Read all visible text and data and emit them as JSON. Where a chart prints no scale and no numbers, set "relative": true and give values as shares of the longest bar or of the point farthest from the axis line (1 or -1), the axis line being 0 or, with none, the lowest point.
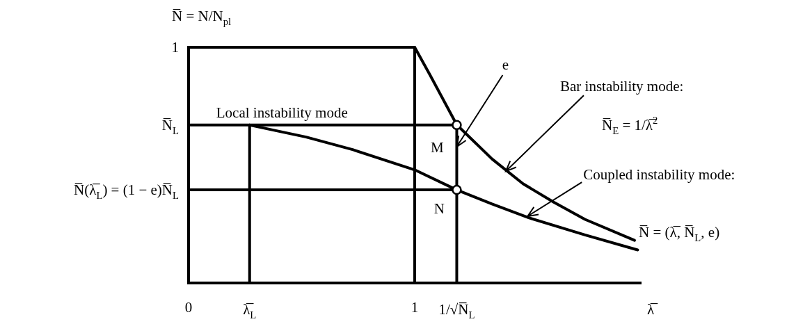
{
  "chart_data": {
    "type": "line",
    "xlabel": "λ̅",
    "ylabel": "N̅ = N/N$_{pl}$",
    "xlim": [
      0,
      2
    ],
    "xticks": [
      0,
      {
        "value": 0.27,
        "label": "λ̅$_{L}$"
      },
      1,
      {
        "value": 1.186,
        "label": "1/√N̅$_{L}$"
      }
    ],
    "relative": true,
    "series": [
      {
        "color": "#000000",
        "x": [
          0,
          1,
          1
        ],
        "values": [
          1,
          1,
          0
        ]
      },
      {
        "color": "#000000",
        "x": [
          1,
          1.068,
          1.186,
          1.342,
          1.479,
          1.616,
          1.753,
          1.972
        ],
        "values": [
          1,
          0.882,
          0.671,
          0.526,
          0.421,
          0.342,
          0.27,
          0.181
        ]
      },
      {
        "color": "#000000",
        "x": [
          0.27,
          0.52,
          0.725,
          1,
          1.186,
          1.342,
          1.506,
          1.753,
          1.986
        ],
        "values": [
          0.67,
          0.619,
          0.566,
          0.48,
          0.395,
          0.335,
          0.276,
          0.204,
          0.14
        ]
      },
      {
        "color": "#000000",
        "x": [
          0,
          1.186,
          1.186
        ],
        "values": [
          0.67,
          0.67,
          0
        ]
      },
      {
        "color": "#000000",
        "x": [
          0.27,
          0.27
        ],
        "values": [
          0.67,
          0
        ]
      },
      {
        "color": "#000000",
        "x": [
          0,
          1.186
        ],
        "values": [
          0.395,
          0.395
        ]
      },
      {
        "type": "scatter",
        "marker": "circle",
        "color": "#000000",
        "x": [
          1.186,
          1.186
        ],
        "values": [
          0.67,
          0.395
        ]
      }
    ],
    "annotations": [
      {
        "text": "Local instability mode",
        "x": 0.27,
        "y": 0.67
      },
      {
        "text": "e",
        "x": 1.186,
        "y": 0.578
      },
      {
        "text": "M",
        "x": 1.186,
        "y": 0.67
      },
      {
        "text": "N",
        "x": 1.186,
        "y": 0.395
      },
      {
        "text": "Bar instability mode:",
        "x": 1.403,
        "y": 0.474
      },
      "N̅$_{E}$ = 1/λ̅$^{2}$",
      {
        "text": "Coupled instability mode:",
        "x": 1.499,
        "y": 0.283
      },
      "N̅ = (λ̅, N̅$_{L}$, e)",
      {
        "text": "N̅(λ̅$_{L}$) = (1 − e)N̅$_{L}$",
        "x": 0,
        "y": 0.395
      },
      {
        "text": "N̅$_{L}$",
        "x": 0,
        "y": 0.67
      },
      {
        "text": "1",
        "x": 0,
        "y": 1
      }
    ]
  }
}
